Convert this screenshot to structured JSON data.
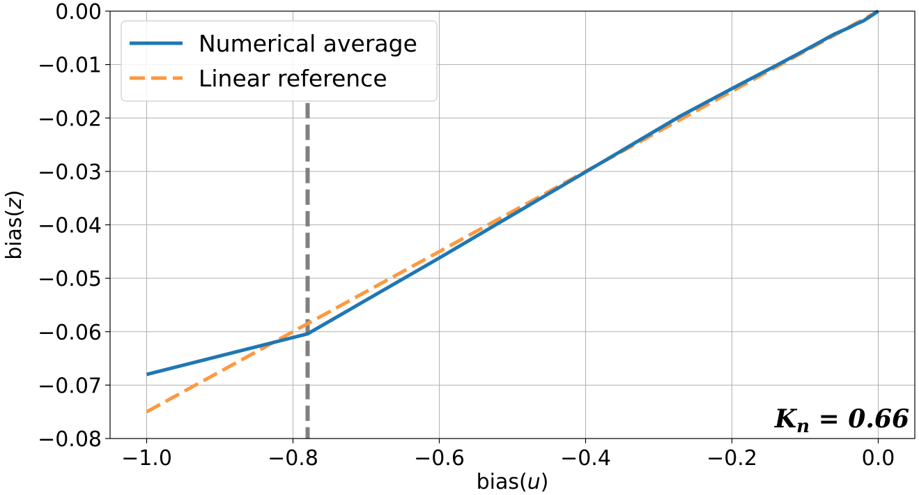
{
  "chart_data": {
    "type": "line",
    "xlabel": "bias(u)",
    "ylabel": "bias(z)",
    "xlim": [
      -1.05,
      0.05
    ],
    "ylim": [
      -0.08,
      0.0
    ],
    "xticks": [
      -1.0,
      -0.8,
      -0.6,
      -0.4,
      -0.2,
      0.0
    ],
    "xtick_labels": [
      "−1.0",
      "−0.8",
      "−0.6",
      "−0.4",
      "−0.2",
      "0.0"
    ],
    "yticks": [
      -0.08,
      -0.07,
      -0.06,
      -0.05,
      -0.04,
      -0.03,
      -0.02,
      -0.01,
      0.0
    ],
    "ytick_labels": [
      "−0.08",
      "−0.07",
      "−0.06",
      "−0.05",
      "−0.04",
      "−0.03",
      "−0.02",
      "−0.01",
      "0.00"
    ],
    "grid": true,
    "legend_position": "top-left",
    "series": [
      {
        "name": "Numerical average",
        "style": "solid",
        "color": "#1f77b4",
        "x": [
          -1.0,
          -0.78,
          -0.6,
          -0.4,
          -0.27,
          -0.2,
          -0.14,
          -0.1,
          -0.06,
          -0.04,
          -0.03,
          -0.02,
          -0.01,
          0.0
        ],
        "y": [
          -0.068,
          -0.0604,
          -0.0462,
          -0.0301,
          -0.0196,
          -0.0145,
          -0.0102,
          -0.0073,
          -0.0043,
          -0.0031,
          -0.0024,
          -0.0018,
          -0.0009,
          0.0
        ]
      },
      {
        "name": "Linear reference",
        "style": "dashed",
        "color": "#ff983f",
        "x": [
          -1.0,
          0.0
        ],
        "y": [
          -0.075,
          0.0
        ]
      }
    ],
    "vline": {
      "x": -0.78,
      "y_top": -0.0172,
      "color": "#808080",
      "style": "dashed"
    },
    "annotation": {
      "base": "K",
      "sub": "n",
      "rest": " = 0.66",
      "position": "bottom-right"
    }
  }
}
